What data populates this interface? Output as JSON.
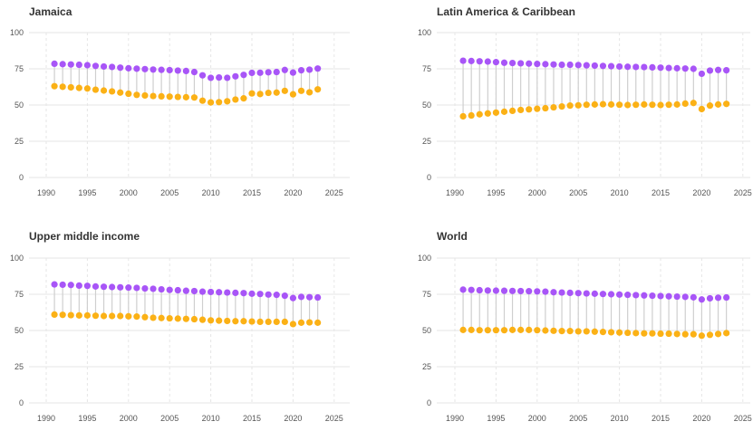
{
  "colors": {
    "upper": "#a855f7",
    "lower": "#fbb116",
    "stem": "#cfcfcf",
    "grid": "#e6e6e6"
  },
  "chart_data": [
    {
      "type": "dumbbell",
      "title": "Jamaica",
      "x": [
        1991,
        1992,
        1993,
        1994,
        1995,
        1996,
        1997,
        1998,
        1999,
        2000,
        2001,
        2002,
        2003,
        2004,
        2005,
        2006,
        2007,
        2008,
        2009,
        2010,
        2011,
        2012,
        2013,
        2014,
        2015,
        2016,
        2017,
        2018,
        2019,
        2020,
        2021,
        2022,
        2023
      ],
      "series": [
        {
          "values": [
            78.5,
            78.2,
            78.0,
            77.8,
            77.5,
            77.0,
            76.6,
            76.3,
            75.8,
            75.4,
            75.1,
            74.8,
            74.5,
            74.3,
            74.1,
            73.8,
            73.5,
            72.8,
            70.5,
            68.8,
            69.0,
            68.8,
            69.8,
            70.8,
            72.2,
            72.3,
            72.6,
            72.8,
            74.2,
            72.4,
            74.0,
            74.4,
            75.2
          ]
        },
        {
          "values": [
            63.0,
            62.6,
            62.2,
            61.8,
            61.4,
            60.6,
            60.0,
            59.4,
            58.6,
            57.8,
            57.0,
            56.6,
            56.2,
            56.0,
            55.8,
            55.6,
            55.4,
            55.2,
            53.0,
            51.8,
            52.0,
            52.6,
            53.8,
            54.6,
            58.0,
            57.6,
            58.4,
            58.6,
            59.8,
            57.4,
            59.8,
            58.8,
            60.8
          ]
        }
      ],
      "xlim": [
        1990,
        2025
      ],
      "ylim": [
        0,
        100
      ],
      "xticks": [
        "1990",
        "1995",
        "2000",
        "2005",
        "2010",
        "2015",
        "2020",
        "2025"
      ],
      "yticks": [
        "0",
        "25",
        "50",
        "75",
        "100"
      ]
    },
    {
      "type": "dumbbell",
      "title": "Latin America & Caribbean",
      "x": [
        1991,
        1992,
        1993,
        1994,
        1995,
        1996,
        1997,
        1998,
        1999,
        2000,
        2001,
        2002,
        2003,
        2004,
        2005,
        2006,
        2007,
        2008,
        2009,
        2010,
        2011,
        2012,
        2013,
        2014,
        2015,
        2016,
        2017,
        2018,
        2019,
        2020,
        2021,
        2022,
        2023
      ],
      "series": [
        {
          "values": [
            80.6,
            80.4,
            80.2,
            80.0,
            79.6,
            79.2,
            79.0,
            78.8,
            78.6,
            78.4,
            78.2,
            78.0,
            77.8,
            77.8,
            77.6,
            77.4,
            77.2,
            77.0,
            76.8,
            76.6,
            76.4,
            76.3,
            76.2,
            76.0,
            75.8,
            75.6,
            75.4,
            75.2,
            75.0,
            71.6,
            73.8,
            74.2,
            74.0
          ]
        },
        {
          "values": [
            42.2,
            42.8,
            43.6,
            44.2,
            44.8,
            45.4,
            46.0,
            46.6,
            47.0,
            47.4,
            47.8,
            48.4,
            49.0,
            49.6,
            49.8,
            50.2,
            50.4,
            50.6,
            50.4,
            50.2,
            50.0,
            50.2,
            50.4,
            50.2,
            50.0,
            50.2,
            50.4,
            51.0,
            51.4,
            47.2,
            49.6,
            50.4,
            50.8
          ]
        }
      ],
      "xlim": [
        1990,
        2025
      ],
      "ylim": [
        0,
        100
      ],
      "xticks": [
        "1990",
        "1995",
        "2000",
        "2005",
        "2010",
        "2015",
        "2020",
        "2025"
      ],
      "yticks": [
        "0",
        "25",
        "50",
        "75",
        "100"
      ]
    },
    {
      "type": "dumbbell",
      "title": "Upper middle income",
      "x": [
        1991,
        1992,
        1993,
        1994,
        1995,
        1996,
        1997,
        1998,
        1999,
        2000,
        2001,
        2002,
        2003,
        2004,
        2005,
        2006,
        2007,
        2008,
        2009,
        2010,
        2011,
        2012,
        2013,
        2014,
        2015,
        2016,
        2017,
        2018,
        2019,
        2020,
        2021,
        2022,
        2023
      ],
      "series": [
        {
          "values": [
            81.8,
            81.6,
            81.4,
            81.0,
            80.8,
            80.4,
            80.2,
            80.0,
            79.8,
            79.6,
            79.4,
            79.0,
            78.8,
            78.4,
            78.0,
            77.8,
            77.4,
            77.2,
            76.8,
            76.6,
            76.4,
            76.2,
            76.0,
            75.8,
            75.4,
            75.2,
            74.8,
            74.6,
            74.0,
            72.4,
            73.2,
            73.0,
            72.8
          ]
        },
        {
          "values": [
            61.0,
            60.8,
            60.6,
            60.4,
            60.4,
            60.2,
            60.0,
            60.0,
            60.0,
            59.8,
            59.6,
            59.2,
            58.8,
            58.6,
            58.4,
            58.2,
            58.0,
            57.8,
            57.4,
            57.0,
            56.8,
            56.6,
            56.4,
            56.4,
            56.2,
            56.0,
            56.0,
            56.0,
            56.0,
            54.4,
            55.4,
            55.6,
            55.4
          ]
        }
      ],
      "xlim": [
        1990,
        2025
      ],
      "ylim": [
        0,
        100
      ],
      "xticks": [
        "1990",
        "1995",
        "2000",
        "2005",
        "2010",
        "2015",
        "2020",
        "2025"
      ],
      "yticks": [
        "0",
        "25",
        "50",
        "75",
        "100"
      ]
    },
    {
      "type": "dumbbell",
      "title": "World",
      "x": [
        1991,
        1992,
        1993,
        1994,
        1995,
        1996,
        1997,
        1998,
        1999,
        2000,
        2001,
        2002,
        2003,
        2004,
        2005,
        2006,
        2007,
        2008,
        2009,
        2010,
        2011,
        2012,
        2013,
        2014,
        2015,
        2016,
        2017,
        2018,
        2019,
        2020,
        2021,
        2022,
        2023
      ],
      "series": [
        {
          "values": [
            78.2,
            78.0,
            77.8,
            77.6,
            77.5,
            77.4,
            77.3,
            77.2,
            77.1,
            77.0,
            76.8,
            76.4,
            76.2,
            76.0,
            75.8,
            75.6,
            75.4,
            75.2,
            75.0,
            74.8,
            74.6,
            74.4,
            74.2,
            74.0,
            73.8,
            73.6,
            73.4,
            73.2,
            72.9,
            71.4,
            72.2,
            72.6,
            72.8
          ]
        },
        {
          "values": [
            50.4,
            50.4,
            50.2,
            50.2,
            50.2,
            50.2,
            50.4,
            50.4,
            50.4,
            50.2,
            50.0,
            49.8,
            49.6,
            49.6,
            49.4,
            49.4,
            49.2,
            49.0,
            48.8,
            48.6,
            48.4,
            48.2,
            48.0,
            48.0,
            47.8,
            47.8,
            47.6,
            47.4,
            47.4,
            46.4,
            47.0,
            47.6,
            48.2
          ]
        }
      ],
      "xlim": [
        1990,
        2025
      ],
      "ylim": [
        0,
        100
      ],
      "xticks": [
        "1990",
        "1995",
        "2000",
        "2005",
        "2010",
        "2015",
        "2020",
        "2025"
      ],
      "yticks": [
        "0",
        "25",
        "50",
        "75",
        "100"
      ]
    }
  ]
}
